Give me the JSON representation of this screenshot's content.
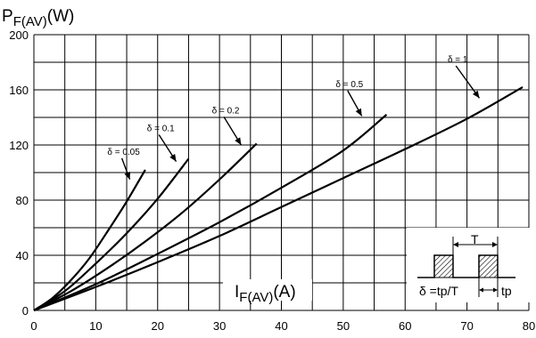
{
  "chart_data": {
    "type": "line",
    "ylabel_main": "P",
    "ylabel_sub": "F(AV)",
    "ylabel_unit": "(W)",
    "xlabel_main": "I",
    "xlabel_sub": "F(AV)",
    "xlabel_unit": "(A)",
    "xlim": [
      0,
      80
    ],
    "ylim": [
      0,
      200
    ],
    "x_ticks": [
      0,
      10,
      20,
      30,
      40,
      50,
      60,
      70,
      80
    ],
    "y_ticks": [
      0,
      40,
      80,
      120,
      160,
      200
    ],
    "grid": true,
    "series": [
      {
        "name": "δ = 0.05",
        "x": [
          0,
          3,
          6,
          9,
          12,
          15,
          18
        ],
        "y": [
          0,
          9,
          22,
          38,
          58,
          79,
          102
        ]
      },
      {
        "name": "δ = 0.1",
        "x": [
          0,
          5,
          10,
          15,
          20,
          25
        ],
        "y": [
          0,
          14,
          34,
          56,
          81,
          110
        ]
      },
      {
        "name": "δ = 0.2",
        "x": [
          0,
          6,
          12,
          18,
          24,
          30,
          36
        ],
        "y": [
          0,
          14,
          31,
          50,
          71,
          95,
          121
        ]
      },
      {
        "name": "δ = 0.5",
        "x": [
          0,
          10,
          20,
          30,
          40,
          50,
          57
        ],
        "y": [
          0,
          19,
          41,
          64,
          89,
          116,
          142
        ]
      },
      {
        "name": "δ = 1",
        "x": [
          0,
          10,
          20,
          30,
          40,
          50,
          60,
          70,
          79
        ],
        "y": [
          0,
          17,
          35,
          54,
          75,
          96,
          117,
          139,
          162
        ]
      }
    ],
    "annotations": [
      {
        "text": "δ = 0.05",
        "label_x": 14.5,
        "label_y": 113,
        "arrow_x": 15.5,
        "arrow_y": 95
      },
      {
        "text": "δ = 0.1",
        "label_x": 20.5,
        "label_y": 130,
        "arrow_x": 23,
        "arrow_y": 108
      },
      {
        "text": "δ = 0.2",
        "label_x": 31,
        "label_y": 143,
        "arrow_x": 33.5,
        "arrow_y": 120
      },
      {
        "text": "δ = 0.5",
        "label_x": 51,
        "label_y": 162,
        "arrow_x": 53,
        "arrow_y": 141
      },
      {
        "text": "δ = 1",
        "label_x": 68.5,
        "label_y": 180,
        "arrow_x": 72,
        "arrow_y": 154
      }
    ],
    "inset": {
      "period_label": "T",
      "duty_label": "δ =tp/T",
      "pulse_label": "tp"
    }
  }
}
